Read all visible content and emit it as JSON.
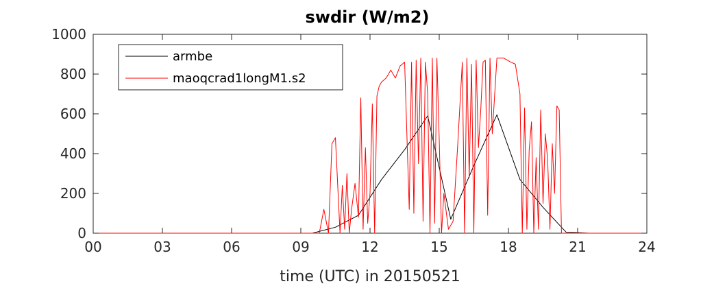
{
  "chart_data": {
    "type": "line",
    "title": "swdir  (W/m2)",
    "xlabel": "time (UTC) in 20150521",
    "ylabel": "",
    "xlim": [
      0,
      24
    ],
    "ylim": [
      0,
      1000
    ],
    "x_ticks": [
      0,
      3,
      6,
      9,
      12,
      15,
      18,
      21,
      24
    ],
    "x_tick_labels": [
      "00",
      "03",
      "06",
      "09",
      "12",
      "15",
      "18",
      "21",
      "24"
    ],
    "y_ticks": [
      0,
      200,
      400,
      600,
      800,
      1000
    ],
    "y_tick_labels": [
      "0",
      "200",
      "400",
      "600",
      "800",
      "1000"
    ],
    "grid": false,
    "legend_position": "top-left",
    "series": [
      {
        "name": "armbe",
        "color": "#000000",
        "x": [
          0,
          9.5,
          10.5,
          11.5,
          12.5,
          13.5,
          14.5,
          15.5,
          16.5,
          17.5,
          18.5,
          19.5,
          20.5,
          21.5,
          24
        ],
        "y": [
          0,
          0,
          30,
          90,
          270,
          420,
          590,
          70,
          340,
          595,
          270,
          130,
          5,
          0,
          0
        ]
      },
      {
        "name": "maoqcrad1longM1.s2",
        "color": "#ff0000",
        "x": [
          0,
          9.8,
          10.0,
          10.2,
          10.35,
          10.5,
          10.7,
          10.8,
          10.9,
          11.0,
          11.1,
          11.2,
          11.35,
          11.5,
          11.6,
          11.7,
          11.8,
          11.9,
          12.0,
          12.1,
          12.2,
          12.3,
          12.4,
          12.5,
          12.7,
          12.9,
          13.1,
          13.3,
          13.5,
          13.7,
          13.8,
          13.9,
          14.0,
          14.1,
          14.2,
          14.3,
          14.4,
          14.5,
          14.6,
          14.7,
          14.8,
          14.9,
          15.0,
          15.1,
          15.2,
          15.4,
          15.6,
          15.8,
          16.0,
          16.1,
          16.2,
          16.3,
          16.4,
          16.5,
          16.6,
          16.7,
          16.8,
          16.9,
          17.0,
          17.1,
          17.2,
          17.3,
          17.5,
          17.8,
          18.1,
          18.3,
          18.5,
          18.6,
          18.7,
          18.8,
          18.9,
          19.0,
          19.1,
          19.2,
          19.3,
          19.4,
          19.5,
          19.6,
          19.7,
          19.8,
          19.9,
          20.0,
          20.1,
          20.2,
          20.3,
          20.5,
          24
        ],
        "y": [
          0,
          0,
          120,
          0,
          450,
          480,
          0,
          240,
          20,
          300,
          0,
          120,
          250,
          80,
          680,
          20,
          430,
          50,
          200,
          650,
          0,
          690,
          740,
          760,
          780,
          820,
          780,
          840,
          860,
          120,
          860,
          100,
          870,
          350,
          880,
          60,
          860,
          700,
          0,
          880,
          50,
          880,
          470,
          0,
          200,
          20,
          60,
          440,
          860,
          0,
          880,
          280,
          850,
          0,
          870,
          430,
          620,
          860,
          870,
          90,
          880,
          500,
          880,
          880,
          860,
          850,
          700,
          0,
          630,
          20,
          420,
          560,
          0,
          380,
          20,
          620,
          150,
          500,
          370,
          20,
          450,
          200,
          640,
          620,
          0,
          0,
          0
        ]
      }
    ]
  }
}
